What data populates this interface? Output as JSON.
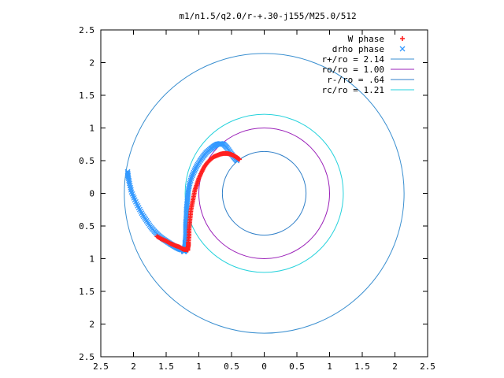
{
  "chart_data": {
    "type": "scatter",
    "title": "m1/n1.5/q2.0/r-+.30-j155/M25.0/512",
    "xlabel": "",
    "ylabel": "",
    "xlim": [
      -2.5,
      2.5
    ],
    "ylim": [
      -2.5,
      2.5
    ],
    "x_ticks": [
      -2.5,
      -2,
      -1.5,
      -1,
      -0.5,
      0,
      0.5,
      1,
      1.5,
      2,
      2.5
    ],
    "y_ticks": [
      -2.5,
      -2,
      -1.5,
      -1,
      -0.5,
      0,
      0.5,
      1,
      1.5,
      2,
      2.5
    ],
    "x_tick_labels": [
      "2.5",
      "2",
      "1.5",
      "1",
      "0.5",
      "0",
      "0.5",
      "1",
      "1.5",
      "2",
      "2.5"
    ],
    "y_tick_labels": [
      "2.5",
      "2",
      "1.5",
      "1",
      "0.5",
      "0",
      "0.5",
      "1",
      "1.5",
      "2",
      "2.5"
    ],
    "grid": false,
    "legend_position": "top-right",
    "circles": [
      {
        "name": "r+/ro = 2.14",
        "radius": 2.14,
        "color": "#3a8fd0"
      },
      {
        "name": "ro/ro = 1.00",
        "radius": 1.0,
        "color": "#9a1fb8"
      },
      {
        "name": "r-/ro = .64",
        "radius": 0.64,
        "color": "#2f7fc8"
      },
      {
        "name": "rc/ro = 1.21",
        "radius": 1.21,
        "color": "#26d2dc"
      }
    ],
    "series": [
      {
        "name": "drho phase",
        "marker": "x",
        "color": "#3399ff",
        "x": [
          -0.42,
          -0.47,
          -0.52,
          -0.57,
          -0.62,
          -0.67,
          -0.72,
          -0.77,
          -0.82,
          -0.88,
          -0.93,
          -0.98,
          -1.03,
          -1.07,
          -1.11,
          -1.14,
          -1.16,
          -1.17,
          -1.18,
          -1.19,
          -1.19,
          -1.2,
          -1.2,
          -1.2,
          -1.21,
          -1.21,
          -1.22,
          -1.22,
          -1.22,
          -1.23,
          -1.23,
          -1.23,
          -1.24,
          -1.25,
          -1.26,
          -1.27,
          -1.3,
          -1.34,
          -1.39,
          -1.44,
          -1.5,
          -1.56,
          -1.62,
          -1.68,
          -1.74,
          -1.8,
          -1.86,
          -1.92,
          -1.98,
          -2.03,
          -2.06,
          -2.08,
          -2.09
        ],
        "y": [
          0.5,
          0.56,
          0.63,
          0.7,
          0.75,
          0.76,
          0.75,
          0.72,
          0.68,
          0.63,
          0.57,
          0.5,
          0.42,
          0.34,
          0.25,
          0.15,
          0.05,
          -0.05,
          -0.15,
          -0.25,
          -0.35,
          -0.45,
          -0.55,
          -0.65,
          -0.75,
          -0.8,
          -0.85,
          -0.89,
          -0.87,
          -0.89,
          -0.88,
          -0.87,
          -0.86,
          -0.86,
          -0.86,
          -0.86,
          -0.85,
          -0.83,
          -0.8,
          -0.77,
          -0.73,
          -0.69,
          -0.64,
          -0.58,
          -0.51,
          -0.42,
          -0.33,
          -0.22,
          -0.1,
          0.02,
          0.15,
          0.25,
          0.33
        ]
      },
      {
        "name": "W phase",
        "marker": "+",
        "color": "#ff2020",
        "x": [
          -0.38,
          -0.42,
          -0.47,
          -0.52,
          -0.57,
          -0.62,
          -0.67,
          -0.72,
          -0.77,
          -0.82,
          -0.87,
          -0.92,
          -0.96,
          -1.0,
          -1.03,
          -1.06,
          -1.08,
          -1.1,
          -1.12,
          -1.13,
          -1.14,
          -1.15,
          -1.15,
          -1.16,
          -1.16,
          -1.17,
          -1.17,
          -1.17,
          -1.18,
          -1.2,
          -1.22,
          -1.25,
          -1.3,
          -1.36,
          -1.43,
          -1.5,
          -1.57,
          -1.64
        ],
        "y": [
          0.52,
          0.55,
          0.58,
          0.6,
          0.61,
          0.61,
          0.6,
          0.58,
          0.56,
          0.52,
          0.47,
          0.4,
          0.32,
          0.23,
          0.14,
          0.05,
          -0.05,
          -0.15,
          -0.25,
          -0.35,
          -0.45,
          -0.55,
          -0.65,
          -0.75,
          -0.8,
          -0.84,
          -0.87,
          -0.85,
          -0.86,
          -0.86,
          -0.86,
          -0.85,
          -0.82,
          -0.8,
          -0.77,
          -0.73,
          -0.7,
          -0.66
        ]
      }
    ]
  }
}
